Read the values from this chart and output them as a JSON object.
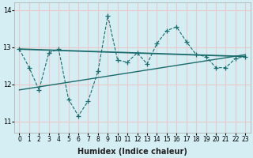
{
  "xlabel": "Humidex (Indice chaleur)",
  "bg_color": "#d4eef4",
  "grid_color": "#e8c8c8",
  "line_color": "#1a6b6b",
  "xlim": [
    -0.5,
    23.5
  ],
  "ylim": [
    10.7,
    14.2
  ],
  "yticks": [
    11,
    12,
    13,
    14
  ],
  "xticks": [
    0,
    1,
    2,
    3,
    4,
    5,
    6,
    7,
    8,
    9,
    10,
    11,
    12,
    13,
    14,
    15,
    16,
    17,
    18,
    19,
    20,
    21,
    22,
    23
  ],
  "line1_x": [
    0,
    1,
    2,
    3,
    4,
    5,
    6,
    7,
    8,
    9,
    10,
    11,
    12,
    13,
    14,
    15,
    16,
    17,
    18,
    19,
    20,
    21,
    22,
    23
  ],
  "line1_y": [
    12.95,
    12.45,
    11.85,
    12.85,
    12.95,
    11.6,
    11.15,
    11.55,
    12.35,
    13.85,
    12.65,
    12.6,
    12.85,
    12.55,
    13.1,
    13.45,
    13.55,
    13.15,
    12.8,
    12.75,
    12.45,
    12.45,
    12.7,
    12.75
  ],
  "line2_x": [
    0,
    23
  ],
  "line2_y": [
    12.95,
    12.75
  ],
  "line3_x": [
    0,
    23
  ],
  "line3_y": [
    11.85,
    12.8
  ]
}
